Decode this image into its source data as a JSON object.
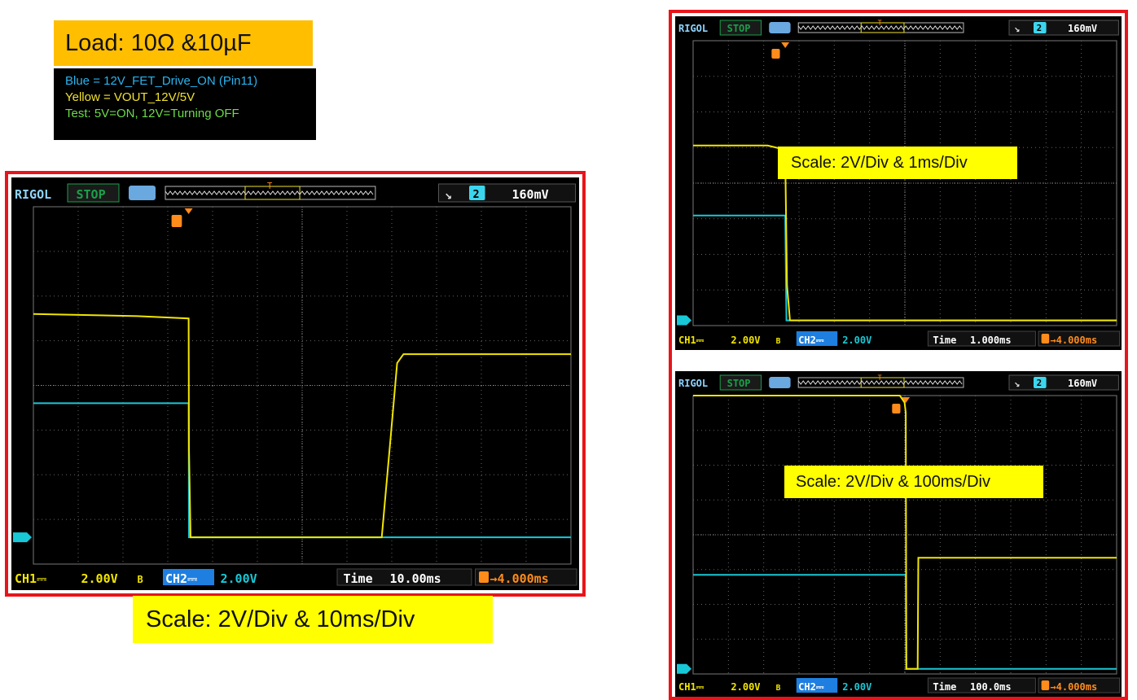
{
  "load_label": "Load: 10Ω &10µF",
  "legend": {
    "lines": [
      {
        "text": "Blue = 12V_FET_Drive_ON  (Pin11)",
        "color": "#2ab4f0"
      },
      {
        "text": "Yellow = VOUT_12V/5V",
        "color": "#f0e22c"
      },
      {
        "text": "Test: 5V=ON, 12V=Turning  OFF",
        "color": "#6cdc4a"
      }
    ]
  },
  "colors": {
    "frame": "#e8141b",
    "ch1_trace": "#f2e600",
    "ch2_trace": "#19c8d6",
    "trigger": "#ff8c1a",
    "header_green": "#19a04a",
    "ch2_badge": "#1e7fe0",
    "caption_bg": "#ffff00",
    "load_bg": "#ffbf00"
  },
  "scopes": [
    {
      "id": "main",
      "brand": "RIGOL",
      "status": "STOP",
      "trig_edge_icon": "falling-edge-icon",
      "trig_source": "2",
      "trig_level": "160mV",
      "ch1": "CH1",
      "ch1_scale": "2.00V",
      "ch1_bw_mark": "B",
      "ch2": "CH2",
      "ch2_scale": "2.00V",
      "time_label": "Time",
      "timebase": "10.00ms",
      "trig_offset": "→4.000ms",
      "caption": "Scale: 2V/Div & 10ms/Div",
      "chart_data": {
        "type": "line",
        "xlabel": "",
        "ylabel": "",
        "x_unit": "ms",
        "xlim": [
          -24.2,
          59.6
        ],
        "ylim": [
          -1.2,
          14.8
        ],
        "grid": true,
        "series": [
          {
            "name": "CH1",
            "x": [
              -24.2,
              -8,
              0,
              0.05,
              0.3,
              30.1,
              31.5,
              32.5,
              33.5,
              59.6
            ],
            "y": [
              10.0,
              9.9,
              9.8,
              4.0,
              0.0,
              0.0,
              4.5,
              7.8,
              8.2,
              8.2
            ]
          },
          {
            "name": "CH2",
            "x": [
              -24.2,
              0,
              0.05,
              59.6
            ],
            "y": [
              6.0,
              6.0,
              0.0,
              0.0
            ]
          }
        ]
      }
    },
    {
      "id": "top-right",
      "brand": "RIGOL",
      "status": "STOP",
      "trig_edge_icon": "falling-edge-icon",
      "trig_source": "2",
      "trig_level": "160mV",
      "ch1": "CH1",
      "ch1_scale": "2.00V",
      "ch1_bw_mark": "B",
      "ch2": "CH2",
      "ch2_scale": "2.00V",
      "time_label": "Time",
      "timebase": "1.000ms",
      "trig_offset": "→4.000ms",
      "caption": "Scale: 2V/Div & 1ms/Div",
      "chart_data": {
        "type": "line",
        "xlabel": "",
        "ylabel": "",
        "x_unit": "ms",
        "xlim": [
          -1.56,
          5.61
        ],
        "ylim": [
          -0.3,
          16.0
        ],
        "grid": true,
        "series": [
          {
            "name": "CH1",
            "x": [
              -1.56,
              -0.3,
              -0.05,
              0,
              0.03,
              0.08,
              5.61
            ],
            "y": [
              10.0,
              10.0,
              9.8,
              9.3,
              2.0,
              0.0,
              0.0
            ]
          },
          {
            "name": "CH2",
            "x": [
              -1.56,
              0,
              0.02,
              5.61
            ],
            "y": [
              6.0,
              6.0,
              0.0,
              0.0
            ]
          }
        ]
      }
    },
    {
      "id": "bottom-right",
      "brand": "RIGOL",
      "status": "STOP",
      "trig_edge_icon": "falling-edge-icon",
      "trig_source": "2",
      "trig_level": "160mV",
      "ch1": "CH1",
      "ch1_scale": "2.00V",
      "ch1_bw_mark": "B",
      "ch2": "CH2",
      "ch2_scale": "2.00V",
      "time_label": "Time",
      "timebase": "100.0ms",
      "trig_offset": "→4.000ms",
      "caption": "Scale: 2V/Div & 100ms/Div",
      "chart_data": {
        "type": "line",
        "xlabel": "",
        "ylabel": "",
        "x_unit": "ms",
        "xlim": [
          -357,
          354
        ],
        "ylim": [
          -0.3,
          16.0
        ],
        "grid": true,
        "series": [
          {
            "name": "CH1",
            "x": [
              -357,
              -10,
              -2,
              0,
              1,
              20,
              21,
              354
            ],
            "y": [
              16.0,
              16.0,
              15.6,
              15.0,
              0.0,
              0.0,
              6.5,
              6.5
            ]
          },
          {
            "name": "CH2",
            "x": [
              -357,
              0,
              1,
              354
            ],
            "y": [
              5.5,
              5.5,
              0.0,
              0.0
            ]
          }
        ]
      }
    }
  ]
}
